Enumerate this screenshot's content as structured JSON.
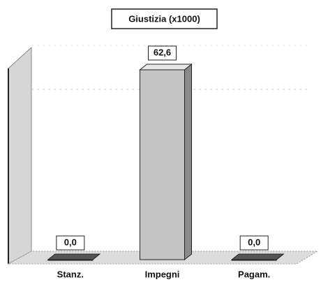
{
  "chart_data": {
    "type": "bar3d",
    "title": "Giustizia (x1000)",
    "categories": [
      "Stanz.",
      "Impegni",
      "Pagam."
    ],
    "values": [
      0,
      62.6,
      0
    ],
    "value_labels": [
      "0,0",
      "62,6",
      "0,0"
    ],
    "color": "#c4c4c4"
  }
}
